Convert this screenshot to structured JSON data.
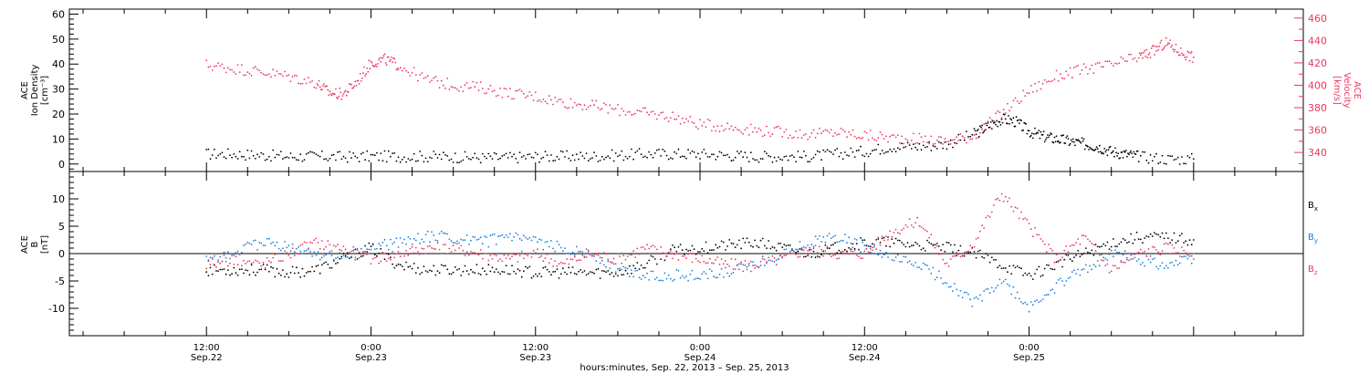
{
  "chart_data": [
    {
      "type": "scatter",
      "ylabel_lines": [
        "ACE",
        "Ion Density",
        "[cm⁻³]"
      ],
      "y2label_lines": [
        "ACE",
        "Velocity",
        "[km/s]"
      ],
      "ylim": [
        -3,
        62
      ],
      "y2lim": [
        323,
        468
      ],
      "yticks": [
        0,
        10,
        20,
        30,
        40,
        50,
        60
      ],
      "y2ticks": [
        340,
        360,
        380,
        400,
        420,
        440,
        460
      ],
      "series": [
        {
          "axis": "left",
          "color": "#000000",
          "x": [
            0,
            2,
            4,
            6,
            8,
            10,
            12,
            14,
            16,
            18,
            20,
            22,
            24,
            26,
            28,
            30,
            32,
            34,
            36,
            38,
            40,
            42,
            44,
            46,
            48,
            50,
            52,
            54,
            56,
            57,
            58,
            59,
            60,
            61,
            62,
            63,
            64,
            65,
            66,
            67,
            68,
            70,
            72
          ],
          "values": [
            4,
            4,
            3.5,
            3,
            3,
            2.8,
            3,
            3,
            3,
            2.8,
            2.5,
            2.5,
            3,
            3,
            3,
            3.5,
            4,
            4,
            4,
            3.5,
            3,
            3,
            3,
            4,
            5,
            7,
            7,
            8,
            12,
            15,
            18,
            17,
            13,
            11,
            10,
            9,
            8,
            7,
            5,
            4,
            3,
            2,
            2
          ]
        },
        {
          "axis": "right",
          "color": "#e8395f",
          "x": [
            0,
            2,
            4,
            6,
            8,
            9,
            10,
            11,
            12,
            13,
            14,
            16,
            18,
            20,
            22,
            24,
            26,
            28,
            30,
            32,
            34,
            36,
            38,
            40,
            42,
            44,
            46,
            48,
            50,
            52,
            54,
            56,
            58,
            60,
            62,
            64,
            66,
            68,
            69,
            70,
            71,
            72
          ],
          "values": [
            418,
            415,
            412,
            408,
            402,
            393,
            392,
            403,
            420,
            423,
            418,
            405,
            400,
            398,
            393,
            390,
            385,
            382,
            378,
            375,
            372,
            365,
            363,
            360,
            358,
            356,
            358,
            355,
            353,
            352,
            350,
            355,
            375,
            395,
            408,
            414,
            418,
            425,
            430,
            438,
            430,
            425
          ]
        }
      ]
    },
    {
      "type": "scatter",
      "ylabel_lines": [
        "ACE",
        "B",
        "[nT]"
      ],
      "ylim": [
        -15,
        15
      ],
      "yticks": [
        -10,
        -5,
        0,
        5,
        10
      ],
      "zero_line": true,
      "legend": [
        {
          "label": "B",
          "sub": "x",
          "color": "#000000"
        },
        {
          "label": "B",
          "sub": "y",
          "color": "#1a7fe0"
        },
        {
          "label": "B",
          "sub": "z",
          "color": "#e8395f"
        }
      ],
      "series": [
        {
          "sub": "x",
          "color": "#000000",
          "x": [
            0,
            2,
            4,
            6,
            8,
            10,
            12,
            14,
            16,
            18,
            20,
            22,
            24,
            26,
            28,
            30,
            32,
            34,
            36,
            38,
            40,
            42,
            44,
            46,
            48,
            50,
            52,
            54,
            56,
            58,
            60,
            62,
            64,
            66,
            68,
            70,
            72
          ],
          "values": [
            -3,
            -3,
            -3,
            -3.5,
            -3,
            -1,
            1,
            -2,
            -3,
            -3,
            -3,
            -3,
            -3.5,
            -3.5,
            -3.5,
            -3.5,
            -2,
            0.5,
            1,
            1.5,
            2,
            1,
            0,
            1,
            2,
            2,
            1.5,
            1,
            0,
            -2,
            -4,
            -2,
            0,
            2,
            3,
            3,
            2.5
          ]
        },
        {
          "sub": "y",
          "color": "#1a7fe0",
          "x": [
            0,
            2,
            4,
            6,
            8,
            10,
            12,
            14,
            16,
            18,
            20,
            22,
            24,
            26,
            28,
            30,
            32,
            34,
            36,
            38,
            40,
            42,
            44,
            46,
            48,
            50,
            52,
            54,
            56,
            58,
            60,
            62,
            64,
            66,
            68,
            70,
            72
          ],
          "values": [
            -1,
            0,
            2,
            1,
            0,
            -1,
            1,
            2,
            3,
            3,
            2,
            3,
            2,
            1,
            0,
            -3,
            -4,
            -4,
            -4,
            -3.5,
            -2,
            0,
            2,
            3,
            1,
            -1,
            -2,
            -5,
            -9,
            -5,
            -10,
            -6,
            -3,
            0,
            -1,
            -2,
            -1
          ]
        },
        {
          "sub": "z",
          "color": "#e8395f",
          "x": [
            0,
            2,
            4,
            6,
            8,
            10,
            12,
            14,
            16,
            18,
            20,
            22,
            24,
            26,
            28,
            30,
            32,
            34,
            36,
            38,
            40,
            42,
            44,
            46,
            48,
            50,
            52,
            54,
            56,
            58,
            60,
            62,
            64,
            66,
            68,
            70,
            72
          ],
          "values": [
            -2,
            -1,
            -2,
            0,
            2,
            1,
            -1,
            0,
            1,
            1,
            0,
            -1,
            0,
            -2,
            0,
            -1,
            1,
            0,
            -1,
            -2,
            -2,
            -1,
            1,
            0,
            0,
            4,
            6,
            -2,
            2,
            11,
            5,
            -1,
            3,
            -3,
            0,
            1,
            0
          ]
        }
      ]
    }
  ],
  "xaxis": {
    "xlim": [
      -10,
      80
    ],
    "major_ticks": [
      {
        "x": 0,
        "time": "12:00",
        "date": "Sep.22"
      },
      {
        "x": 12,
        "time": "0:00",
        "date": "Sep.23"
      },
      {
        "x": 24,
        "time": "12:00",
        "date": "Sep.23"
      },
      {
        "x": 36,
        "time": "0:00",
        "date": "Sep.24"
      },
      {
        "x": 48,
        "time": "12:00",
        "date": "Sep.24"
      },
      {
        "x": 60,
        "time": "0:00",
        "date": "Sep.25"
      }
    ],
    "caption": "hours:minutes, Sep. 22, 2013 – Sep. 25, 2013"
  },
  "colors": {
    "density": "#000000",
    "velocity": "#e8395f",
    "bx": "#000000",
    "by": "#1a7fe0",
    "bz": "#e8395f",
    "axes": "#000000"
  }
}
